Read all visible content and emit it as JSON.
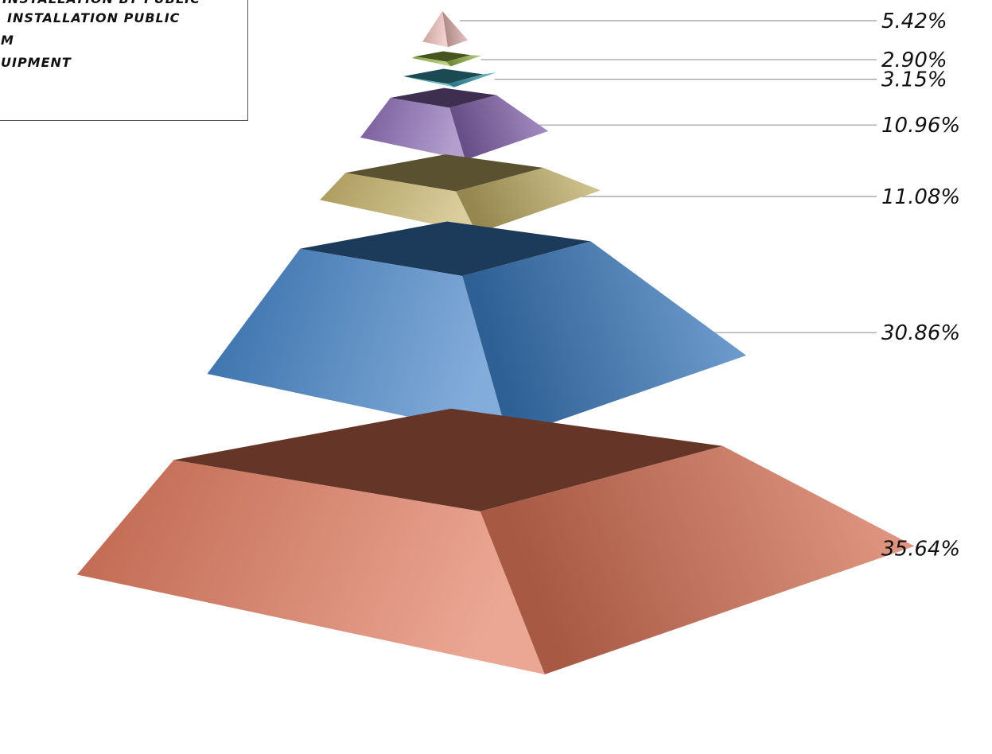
{
  "chart_data": {
    "type": "pyramid",
    "legend": {
      "visible_entries": [
        "INSTALLATION BY PUBLIC",
        "INSTALLATION PUBLIC",
        "M",
        "UIPMENT"
      ],
      "placement": "top-left"
    },
    "levels": [
      {
        "label": "5.42%",
        "value": 5.42,
        "color": "#e9b8b4"
      },
      {
        "label": "2.90%",
        "value": 2.9,
        "color": "#9bbb4a"
      },
      {
        "label": "3.15%",
        "value": 3.15,
        "color": "#3fa4b8"
      },
      {
        "label": "10.96%",
        "value": 10.96,
        "color": "#8a69b4"
      },
      {
        "label": "11.08%",
        "value": 11.08,
        "color": "#c8b46a"
      },
      {
        "label": "30.86%",
        "value": 30.86,
        "color": "#3f80c6"
      },
      {
        "label": "35.64%",
        "value": 35.64,
        "color": "#e0775a"
      }
    ]
  }
}
